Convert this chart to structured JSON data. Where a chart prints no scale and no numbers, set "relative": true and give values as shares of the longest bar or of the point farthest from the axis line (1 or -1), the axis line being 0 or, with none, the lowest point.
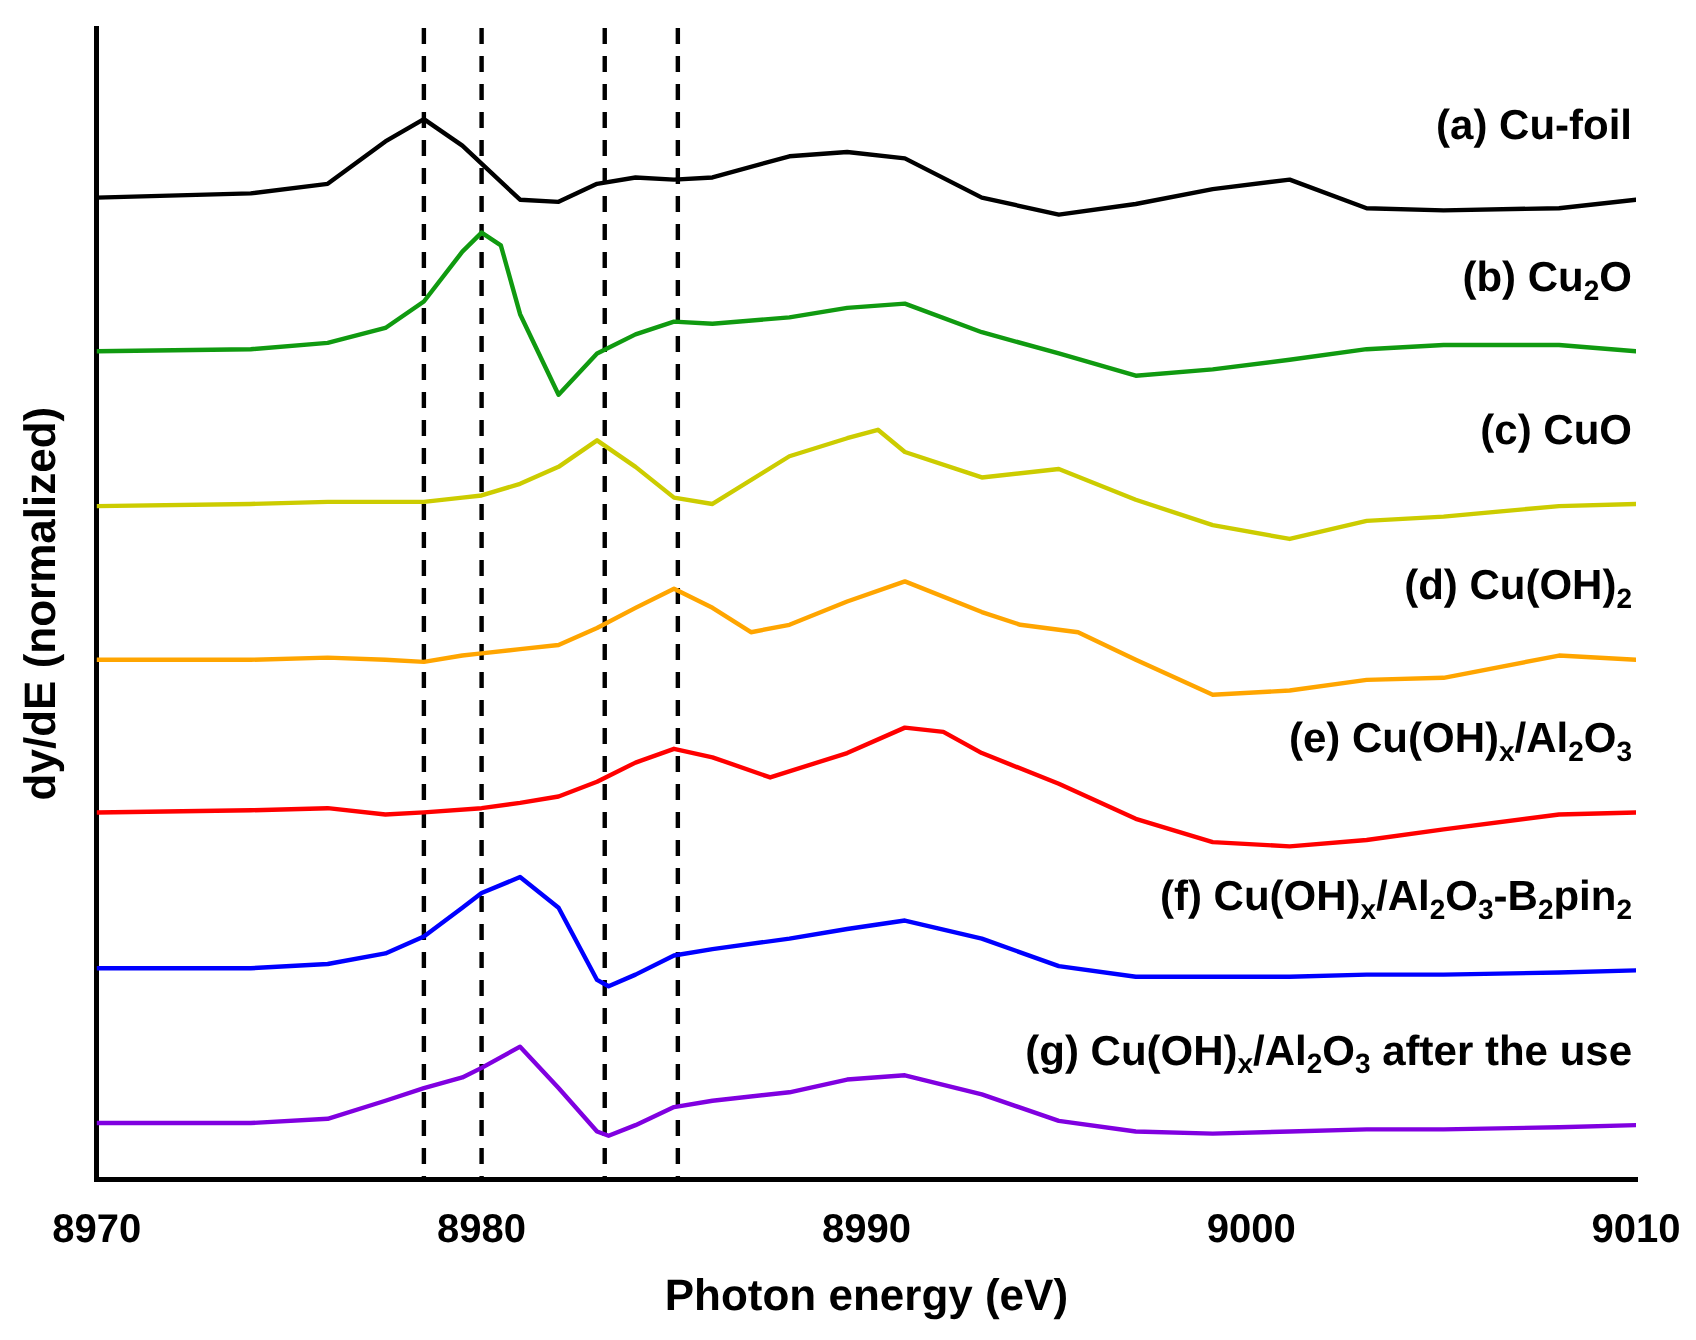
{
  "chart_data": {
    "type": "line",
    "xlabel": "Photon energy (eV)",
    "ylabel": "dy/dE (normalized)",
    "relative": true,
    "xlim": [
      8970,
      9010
    ],
    "xticks": [
      8970,
      8980,
      8990,
      9000,
      9010
    ],
    "grid": false,
    "legend": false,
    "marker": "none",
    "line_style": "solid",
    "ref_lines": [
      {
        "axis": "x",
        "value": 8978.5,
        "color": "#000000",
        "line_style": "dashed"
      },
      {
        "axis": "x",
        "value": 8980,
        "color": "#000000",
        "line_style": "dashed"
      },
      {
        "axis": "x",
        "value": 8983.2,
        "color": "#000000",
        "line_style": "dashed"
      },
      {
        "axis": "x",
        "value": 8985.1,
        "color": "#000000",
        "line_style": "dashed"
      }
    ],
    "series": [
      {
        "name": "(a) Cu-foil",
        "color": "#000000",
        "x": [
          8970,
          8974,
          8976,
          8977.5,
          8978.5,
          8979.5,
          8981,
          8982,
          8983,
          8984,
          8985,
          8986,
          8988,
          8989.5,
          8991,
          8993,
          8995,
          8997,
          8999,
          9001,
          9003,
          9005,
          9008,
          9010
        ],
        "values": [
          0.926,
          0.93,
          0.939,
          0.979,
          1,
          0.975,
          0.924,
          0.922,
          0.939,
          0.945,
          0.943,
          0.945,
          0.965,
          0.969,
          0.963,
          0.926,
          0.91,
          0.92,
          0.934,
          0.943,
          0.916,
          0.914,
          0.916,
          0.924
        ]
      },
      {
        "name": "(b) Cu$_{2}$O",
        "color": "#109a10",
        "x": [
          8970,
          8974,
          8976,
          8977.5,
          8978.5,
          8979.5,
          8980,
          8980.5,
          8981,
          8982,
          8983,
          8984,
          8985,
          8986,
          8988,
          8989.5,
          8991,
          8993,
          8995,
          8997,
          8999,
          9001,
          9003,
          9005,
          9008,
          9010
        ],
        "values": [
          0.781,
          0.783,
          0.789,
          0.803,
          0.828,
          0.875,
          0.893,
          0.881,
          0.816,
          0.74,
          0.779,
          0.797,
          0.809,
          0.807,
          0.813,
          0.822,
          0.826,
          0.799,
          0.779,
          0.758,
          0.764,
          0.773,
          0.783,
          0.787,
          0.787,
          0.781
        ]
      },
      {
        "name": "(c) CuO",
        "color": "#cccc00",
        "x": [
          8970,
          8974,
          8976,
          8977.5,
          8978.5,
          8979.5,
          8980,
          8981,
          8982,
          8983,
          8984,
          8985,
          8986,
          8988,
          8989.5,
          8990.3,
          8991,
          8993,
          8995,
          8997,
          8999,
          9001,
          9003,
          9005,
          9008,
          9010
        ],
        "values": [
          0.635,
          0.637,
          0.639,
          0.639,
          0.639,
          0.643,
          0.645,
          0.656,
          0.672,
          0.697,
          0.672,
          0.643,
          0.637,
          0.682,
          0.699,
          0.707,
          0.686,
          0.662,
          0.67,
          0.641,
          0.617,
          0.604,
          0.621,
          0.625,
          0.635,
          0.637
        ]
      },
      {
        "name": "(d) Cu(OH)$_{2}$",
        "color": "#ffa500",
        "x": [
          8970,
          8974,
          8976,
          8977.5,
          8978.5,
          8979.5,
          8980,
          8981,
          8982,
          8983,
          8984,
          8985,
          8986,
          8987,
          8988,
          8989.5,
          8991,
          8993,
          8994,
          8995.5,
          8997,
          8999,
          9001,
          9003,
          9005,
          9008,
          9010
        ],
        "values": [
          0.49,
          0.49,
          0.492,
          0.49,
          0.488,
          0.494,
          0.496,
          0.5,
          0.504,
          0.52,
          0.539,
          0.557,
          0.539,
          0.516,
          0.523,
          0.545,
          0.564,
          0.535,
          0.523,
          0.516,
          0.49,
          0.457,
          0.461,
          0.471,
          0.473,
          0.494,
          0.49
        ]
      },
      {
        "name": "(e) Cu(OH)$_{x}$/Al$_{2}$O$_{3}$",
        "color": "#ff0000",
        "x": [
          8970,
          8974,
          8976,
          8977.5,
          8978.5,
          8980,
          8981,
          8982,
          8983,
          8984,
          8985,
          8986,
          8987.5,
          8989.5,
          8991,
          8992,
          8993,
          8995,
          8997,
          8999,
          9001,
          9003,
          9005,
          9008,
          9010
        ],
        "values": [
          0.346,
          0.348,
          0.35,
          0.344,
          0.346,
          0.35,
          0.355,
          0.361,
          0.375,
          0.393,
          0.406,
          0.398,
          0.379,
          0.402,
          0.426,
          0.422,
          0.402,
          0.373,
          0.34,
          0.318,
          0.314,
          0.32,
          0.33,
          0.344,
          0.346
        ]
      },
      {
        "name": "(f) Cu(OH)$_{x}$/Al$_{2}$O$_{3}$-B$_{2}$pin$_{2}$",
        "color": "#0000ff",
        "x": [
          8970,
          8974,
          8976,
          8977.5,
          8978.5,
          8979.5,
          8980,
          8981,
          8982,
          8983,
          8983.3,
          8984,
          8985,
          8986,
          8988,
          8989.5,
          8991,
          8993,
          8995,
          8997,
          8999,
          9001,
          9003,
          9005,
          9008,
          9010
        ],
        "values": [
          0.199,
          0.199,
          0.203,
          0.213,
          0.229,
          0.256,
          0.27,
          0.285,
          0.256,
          0.188,
          0.182,
          0.193,
          0.211,
          0.217,
          0.227,
          0.236,
          0.244,
          0.227,
          0.201,
          0.191,
          0.191,
          0.191,
          0.193,
          0.193,
          0.195,
          0.197
        ]
      },
      {
        "name": "(g) Cu(OH)$_{x}$/Al$_{2}$O$_{3}$ after the use",
        "color": "#8000e0",
        "x": [
          8970,
          8974,
          8976,
          8977.5,
          8978.5,
          8979.5,
          8980,
          8981,
          8982,
          8983,
          8983.3,
          8984,
          8985,
          8986,
          8988,
          8989.5,
          8991,
          8993,
          8995,
          8997,
          8999,
          9001,
          9003,
          9005,
          9008,
          9010
        ],
        "values": [
          0.053,
          0.053,
          0.057,
          0.074,
          0.086,
          0.096,
          0.105,
          0.125,
          0.086,
          0.045,
          0.041,
          0.051,
          0.068,
          0.074,
          0.082,
          0.094,
          0.098,
          0.08,
          0.055,
          0.045,
          0.043,
          0.045,
          0.047,
          0.047,
          0.049,
          0.051
        ]
      }
    ]
  }
}
